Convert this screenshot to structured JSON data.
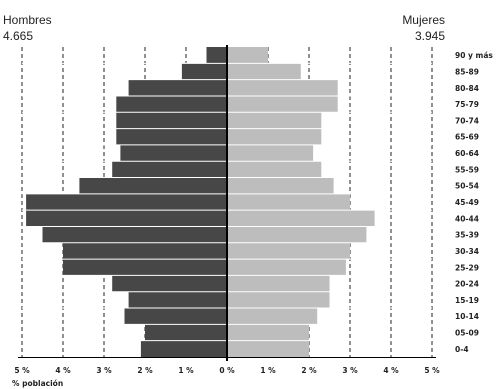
{
  "chart_data": {
    "type": "bar",
    "subtype": "population-pyramid",
    "left_label": "Hombres",
    "left_total": "4.665",
    "right_label": "Mujeres",
    "right_total": "3.945",
    "xlabel": "% población",
    "xlim": [
      -5,
      5
    ],
    "x_ticks": [
      "5 %",
      "4 %",
      "3 %",
      "2 %",
      "1 %",
      "0 %",
      "1 %",
      "2 %",
      "3 %",
      "4 %",
      "5 %"
    ],
    "grid": "vertical dashed",
    "categories": [
      "0-4",
      "05-09",
      "10-14",
      "15-19",
      "20-24",
      "25-29",
      "30-34",
      "35-39",
      "40-44",
      "45-49",
      "50-54",
      "55-59",
      "60-64",
      "65-69",
      "70-74",
      "75-79",
      "80-84",
      "85-89",
      "90 y más"
    ],
    "series": [
      {
        "name": "Hombres",
        "color": "#474747",
        "values": [
          2.1,
          2.0,
          2.5,
          2.4,
          2.8,
          4.0,
          4.0,
          4.5,
          4.9,
          4.9,
          3.6,
          2.8,
          2.6,
          2.7,
          2.7,
          2.7,
          2.4,
          1.1,
          0.5
        ]
      },
      {
        "name": "Mujeres",
        "color": "#bdbdbd",
        "values": [
          2.0,
          2.0,
          2.2,
          2.5,
          2.5,
          2.9,
          3.0,
          3.4,
          3.6,
          3.0,
          2.6,
          2.3,
          2.1,
          2.3,
          2.3,
          2.7,
          2.7,
          1.8,
          1.0
        ]
      }
    ]
  }
}
